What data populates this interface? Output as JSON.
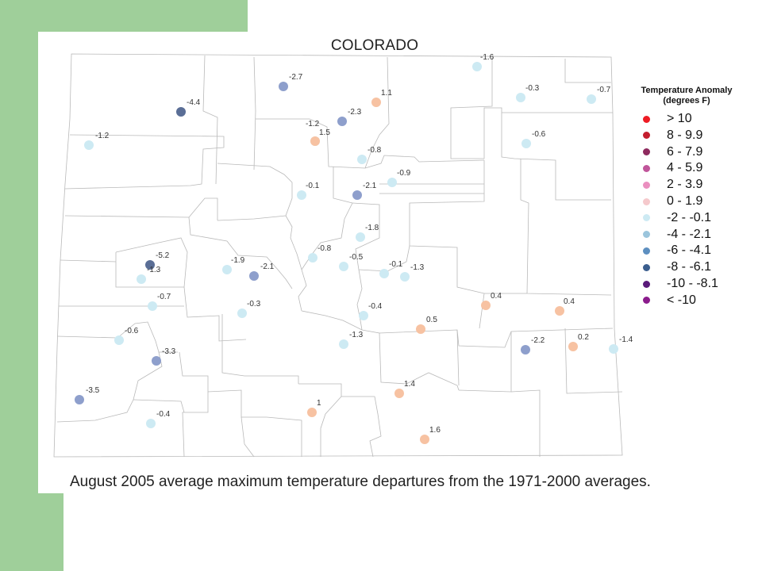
{
  "map": {
    "title": "COLORADO",
    "caption": "August 2005 average maximum temperature departures from the 1971-2000 averages.",
    "station_values": [
      "-1.6",
      "-0.3",
      "-0.7",
      "-2.7",
      "1.1",
      "-4.4",
      "-2.3",
      "-1.2",
      "1.5",
      "-1.2",
      "-0.6",
      "-0.8",
      "-0.9",
      "-0.1",
      "-2.1",
      "-1.8",
      "-5.2",
      "-1.3",
      "-1.9",
      "-2.1",
      "-0.8",
      "-0.5",
      "-0.1",
      "-1.3",
      "-0.7",
      "-0.3",
      "-0.4",
      "0.4",
      "0.4",
      "0.5",
      "-0.6",
      "-3.3",
      "-1.3",
      "-2.2",
      "0.2",
      "-1.4",
      "1.4",
      "-3.5",
      "1",
      "1.6",
      "-0.4"
    ]
  },
  "legend": {
    "title_line1": "Temperature Anomaly",
    "title_line2": "(degrees F)",
    "items": [
      {
        "label": "> 10",
        "color": "#ee1c24"
      },
      {
        "label": "8 - 9.9",
        "color": "#c41e2e"
      },
      {
        "label": "6 - 7.9",
        "color": "#8e2a5e"
      },
      {
        "label": "4 - 5.9",
        "color": "#c0559a"
      },
      {
        "label": "2 - 3.9",
        "color": "#ea8fbf"
      },
      {
        "label": "0 - 1.9",
        "color": "#f5c9cc"
      },
      {
        "label": "-2 - -0.1",
        "color": "#cdeaf3"
      },
      {
        "label": "-4 - -2.1",
        "color": "#9bc5dc"
      },
      {
        "label": "-6 - -4.1",
        "color": "#5d8fc0"
      },
      {
        "label": "-8 - -6.1",
        "color": "#3b5e8e"
      },
      {
        "label": "-10 - -8.1",
        "color": "#5a1a7a"
      },
      {
        "label": "< -10",
        "color": "#8b1c8c"
      }
    ]
  },
  "station_colors": {
    "warm": "#f7c2a2",
    "cool_light": "#cdeaf3",
    "cool_medium": "#8e9fcc",
    "cool_dark": "#5a6e96"
  }
}
